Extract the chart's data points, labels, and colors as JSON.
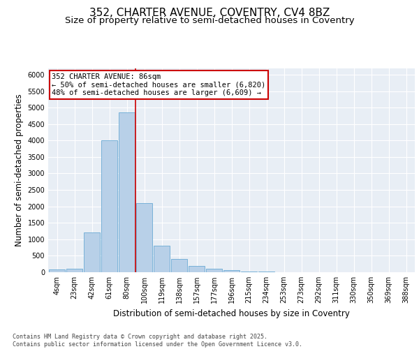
{
  "title_line1": "352, CHARTER AVENUE, COVENTRY, CV4 8BZ",
  "title_line2": "Size of property relative to semi-detached houses in Coventry",
  "xlabel": "Distribution of semi-detached houses by size in Coventry",
  "ylabel": "Number of semi-detached properties",
  "categories": [
    "4sqm",
    "23sqm",
    "42sqm",
    "61sqm",
    "80sqm",
    "100sqm",
    "119sqm",
    "138sqm",
    "157sqm",
    "177sqm",
    "196sqm",
    "215sqm",
    "234sqm",
    "253sqm",
    "273sqm",
    "292sqm",
    "311sqm",
    "330sqm",
    "350sqm",
    "369sqm",
    "388sqm"
  ],
  "values": [
    75,
    100,
    1200,
    4000,
    4850,
    2100,
    800,
    400,
    200,
    100,
    60,
    30,
    15,
    5,
    2,
    1,
    0,
    0,
    0,
    0,
    0
  ],
  "bar_color": "#b8d0e8",
  "bar_edge_color": "#6aaad4",
  "red_line_bar_index": 4,
  "annotation_text_line1": "352 CHARTER AVENUE: 86sqm",
  "annotation_text_line2": "← 50% of semi-detached houses are smaller (6,820)",
  "annotation_text_line3": "48% of semi-detached houses are larger (6,609) →",
  "annotation_box_color": "#ffffff",
  "annotation_box_edge_color": "#cc0000",
  "footer_text": "Contains HM Land Registry data © Crown copyright and database right 2025.\nContains public sector information licensed under the Open Government Licence v3.0.",
  "ylim_max": 6200,
  "ytick_step": 500,
  "background_color": "#e8eef5",
  "grid_color": "#ffffff",
  "title_fontsize": 11,
  "subtitle_fontsize": 9.5,
  "axis_label_fontsize": 8.5,
  "tick_fontsize": 7,
  "annotation_fontsize": 7.5,
  "footer_fontsize": 6
}
